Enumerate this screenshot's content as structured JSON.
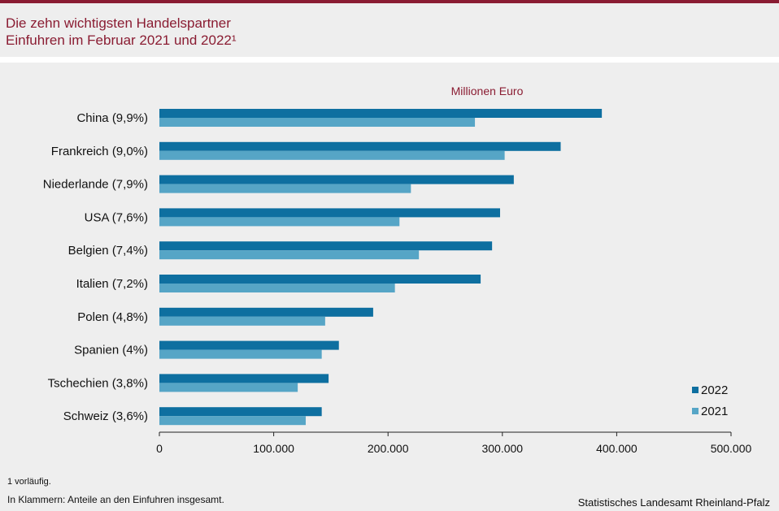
{
  "header": {
    "title_line1": "Die zehn wichtigsten Handelspartner",
    "title_line2": "Einfuhren im Februar 2021 und 2022¹"
  },
  "colors": {
    "accent": "#8a1c32",
    "series_2022": "#0e6fa0",
    "series_2021": "#56a5c6"
  },
  "chart_data": {
    "type": "bar",
    "orientation": "horizontal",
    "unit_label": "Millionen  Euro",
    "categories": [
      "China (9,9%)",
      "Frankreich (9,0%)",
      "Niederlande (7,9%)",
      "USA (7,6%)",
      "Belgien (7,4%)",
      "Italien (7,2%)",
      "Polen (4,8%)",
      "Spanien (4%)",
      "Tschechien (3,8%)",
      "Schweiz (3,6%)"
    ],
    "series": [
      {
        "name": "2022",
        "values": [
          387000,
          351000,
          310000,
          298000,
          291000,
          281000,
          187000,
          157000,
          148000,
          142000
        ]
      },
      {
        "name": "2021",
        "values": [
          276000,
          302000,
          220000,
          210000,
          227000,
          206000,
          145000,
          142000,
          121000,
          128000
        ]
      }
    ],
    "xlim": [
      0,
      500000
    ],
    "xticks": [
      "0",
      "100.000",
      "200.000",
      "300.000",
      "400.000",
      "500.000"
    ],
    "legend": [
      "2022",
      "2021"
    ],
    "legend_position": "bottom-right",
    "grid": false
  },
  "footer": {
    "note1": "1 vorläufig.",
    "note2": "In Klammern: Anteile an den Einfuhren  insgesamt.",
    "source": "Statistisches  Landesamt  Rheinland-Pfalz"
  }
}
